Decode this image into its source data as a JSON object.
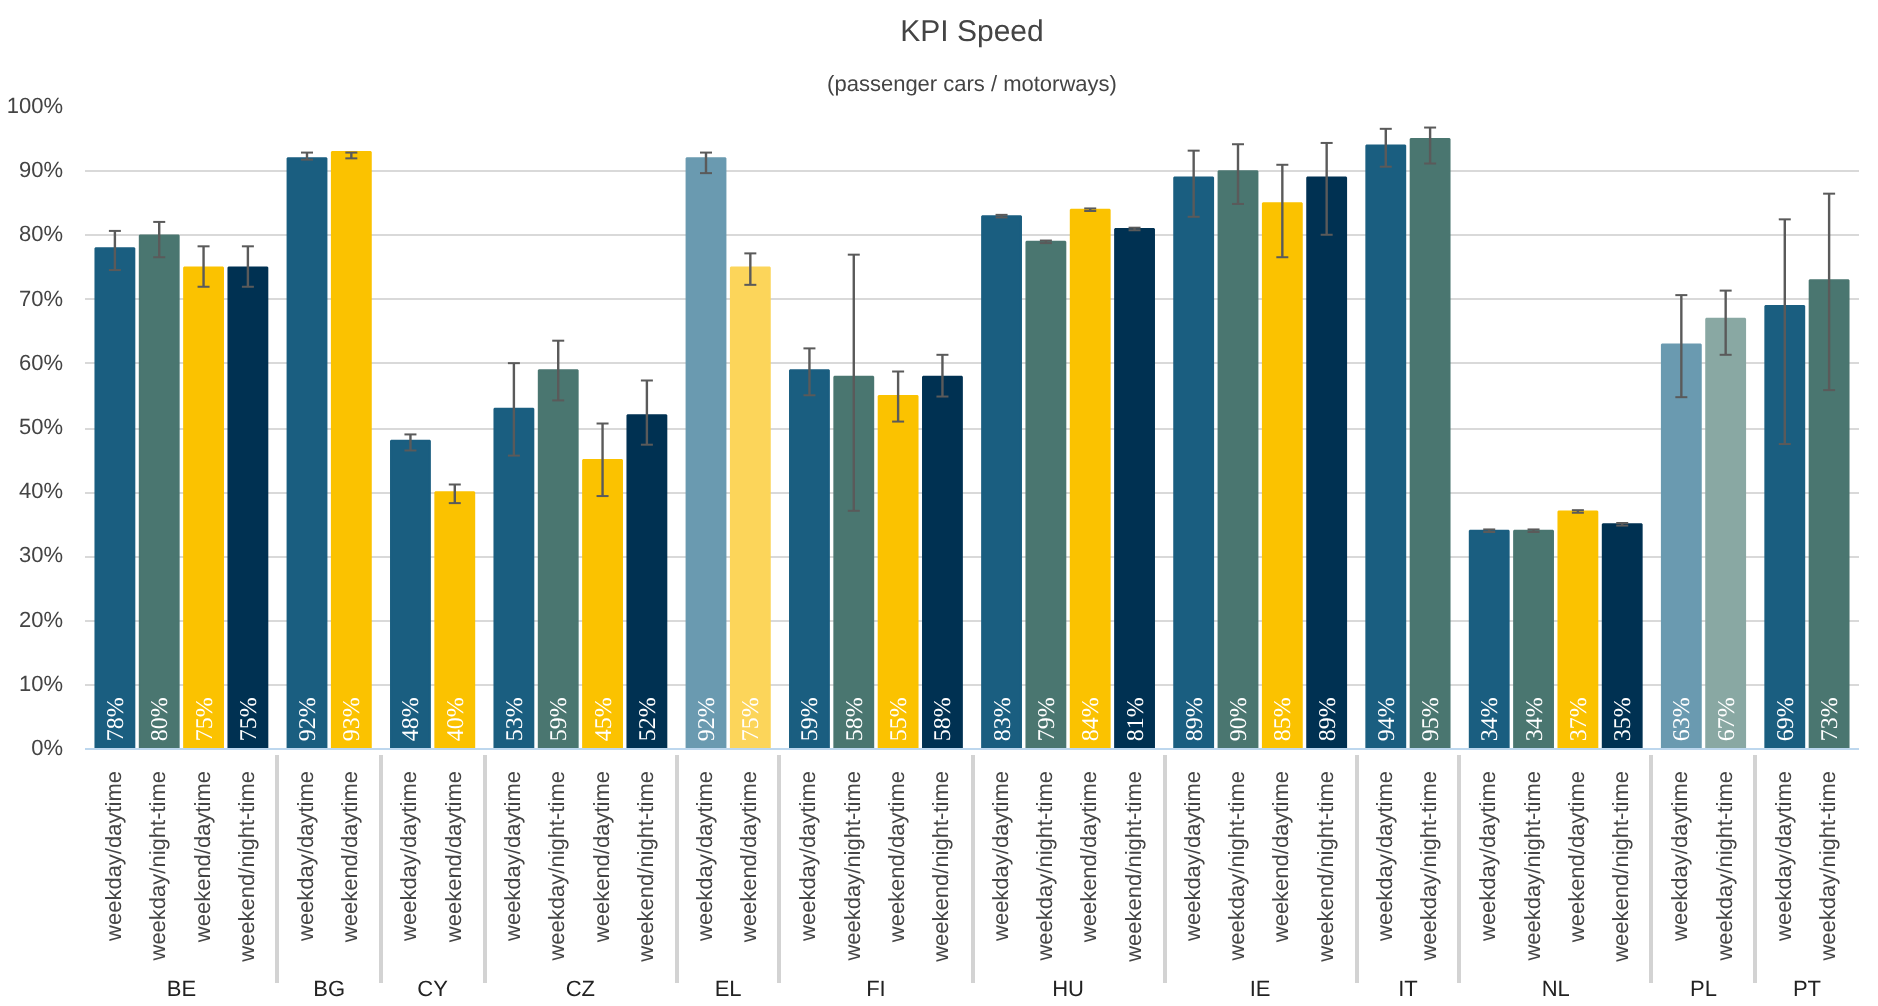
{
  "chart_data": {
    "type": "bar",
    "title": "KPI Speed",
    "subtitle": "(passenger cars / motorways)",
    "categories": [
      [
        "BE",
        "weekday/daytime"
      ],
      [
        null,
        "weekday/night-time"
      ],
      [
        null,
        "weekend/daytime"
      ],
      [
        null,
        "weekend/night-time"
      ],
      [
        "BG",
        "weekday/daytime"
      ],
      [
        null,
        "weekend/daytime"
      ],
      [
        "CY",
        "weekday/daytime"
      ],
      [
        null,
        "weekend/daytime"
      ],
      [
        "CZ",
        "weekday/daytime"
      ],
      [
        null,
        "weekday/night-time"
      ],
      [
        null,
        "weekend/daytime"
      ],
      [
        null,
        "weekend/night-time"
      ],
      [
        "EL",
        "weekday/daytime"
      ],
      [
        null,
        "weekend/daytime"
      ],
      [
        "FI",
        "weekday/daytime"
      ],
      [
        null,
        "weekday/night-time"
      ],
      [
        null,
        "weekend/daytime"
      ],
      [
        null,
        "weekend/night-time"
      ],
      [
        "HU",
        "weekday/daytime"
      ],
      [
        null,
        "weekday/night-time"
      ],
      [
        null,
        "weekend/daytime"
      ],
      [
        null,
        "weekend/night-time"
      ],
      [
        "IE",
        "weekday/daytime"
      ],
      [
        null,
        "weekday/night-time"
      ],
      [
        null,
        "weekend/daytime"
      ],
      [
        null,
        "weekend/night-time"
      ],
      [
        "IT",
        "weekday/daytime"
      ],
      [
        null,
        "weekday/night-time"
      ],
      [
        "NL",
        "weekday/daytime"
      ],
      [
        null,
        "weekday/night-time"
      ],
      [
        null,
        "weekend/daytime"
      ],
      [
        null,
        "weekend/night-time"
      ],
      [
        "PL",
        "weekday/daytime"
      ],
      [
        null,
        "weekday/night-time"
      ],
      [
        "PT",
        "weekday/daytime"
      ],
      [
        null,
        "weekday/night-time"
      ]
    ],
    "values": [
      78,
      80,
      75,
      75,
      92,
      93,
      48,
      40,
      53,
      59,
      45,
      52,
      92,
      75,
      59,
      58,
      55,
      58,
      83,
      79,
      84,
      81,
      89,
      90,
      85,
      89,
      94,
      95,
      34,
      34,
      37,
      35,
      63,
      67,
      69,
      73
    ],
    "value_labels": [
      "78%",
      "80%",
      "75%",
      "75%",
      "92%",
      "93%",
      "48%",
      "40%",
      "53%",
      "59%",
      "45%",
      "52%",
      "92%",
      "75%",
      "59%",
      "58%",
      "55%",
      "58%",
      "83%",
      "79%",
      "84%",
      "81%",
      "89%",
      "90%",
      "85%",
      "89%",
      "94%",
      "95%",
      "34%",
      "34%",
      "37%",
      "35%",
      "63%",
      "67%",
      "69%",
      "73%"
    ],
    "errors": [
      [
        74.6,
        80.7
      ],
      [
        76.6,
        82.1
      ],
      [
        72.0,
        78.3
      ],
      [
        72.0,
        78.3
      ],
      [
        91.8,
        92.9
      ],
      [
        92.0,
        92.9
      ],
      [
        46.5,
        49.0
      ],
      [
        38.3,
        41.2
      ],
      [
        45.7,
        60.1
      ],
      [
        54.3,
        63.6
      ],
      [
        39.4,
        50.7
      ],
      [
        47.4,
        57.4
      ],
      [
        89.7,
        92.9
      ],
      [
        72.3,
        77.2
      ],
      [
        55.1,
        62.4
      ],
      [
        37.1,
        77.0
      ],
      [
        51.0,
        58.8
      ],
      [
        54.9,
        61.4
      ],
      [
        82.8,
        83.2
      ],
      [
        78.8,
        79.2
      ],
      [
        83.8,
        84.2
      ],
      [
        80.8,
        81.2
      ],
      [
        82.9,
        93.2
      ],
      [
        84.9,
        94.2
      ],
      [
        76.6,
        91.0
      ],
      [
        80.1,
        94.4
      ],
      [
        90.7,
        96.6
      ],
      [
        91.2,
        96.8
      ],
      [
        33.8,
        34.2
      ],
      [
        33.8,
        34.2
      ],
      [
        36.8,
        37.2
      ],
      [
        34.8,
        35.2
      ],
      [
        54.8,
        70.7
      ],
      [
        61.4,
        71.4
      ],
      [
        47.5,
        82.5
      ],
      [
        55.9,
        86.5
      ]
    ],
    "colors": [
      "#1a5e80",
      "#4a7670",
      "#fbc200",
      "#003152",
      "#1a5e80",
      "#fbc200",
      "#1a5e80",
      "#fbc200",
      "#1a5e80",
      "#4a7670",
      "#fbc200",
      "#003152",
      "#6a9ab0",
      "#fcd55a",
      "#1a5e80",
      "#4a7670",
      "#fbc200",
      "#003152",
      "#1a5e80",
      "#4a7670",
      "#fbc200",
      "#003152",
      "#1a5e80",
      "#4a7670",
      "#fbc200",
      "#003152",
      "#1a5e80",
      "#4a7670",
      "#1a5e80",
      "#4a7670",
      "#fbc200",
      "#003152",
      "#6a9ab0",
      "#89a8a3",
      "#1a5e80",
      "#4a7670"
    ],
    "ylim": [
      0,
      100
    ],
    "yticks": [
      {
        "value": 0,
        "label": "0%"
      },
      {
        "value": 10,
        "label": "10%"
      },
      {
        "value": 20,
        "label": "20%"
      },
      {
        "value": 30,
        "label": "30%"
      },
      {
        "value": 40,
        "label": "40%"
      },
      {
        "value": 50,
        "label": "50%"
      },
      {
        "value": 60,
        "label": "60%"
      },
      {
        "value": 70,
        "label": "70%"
      },
      {
        "value": 80,
        "label": "80%"
      },
      {
        "value": 90,
        "label": "90%"
      },
      {
        "value": 100,
        "label": "100%"
      }
    ],
    "grid": "y"
  }
}
